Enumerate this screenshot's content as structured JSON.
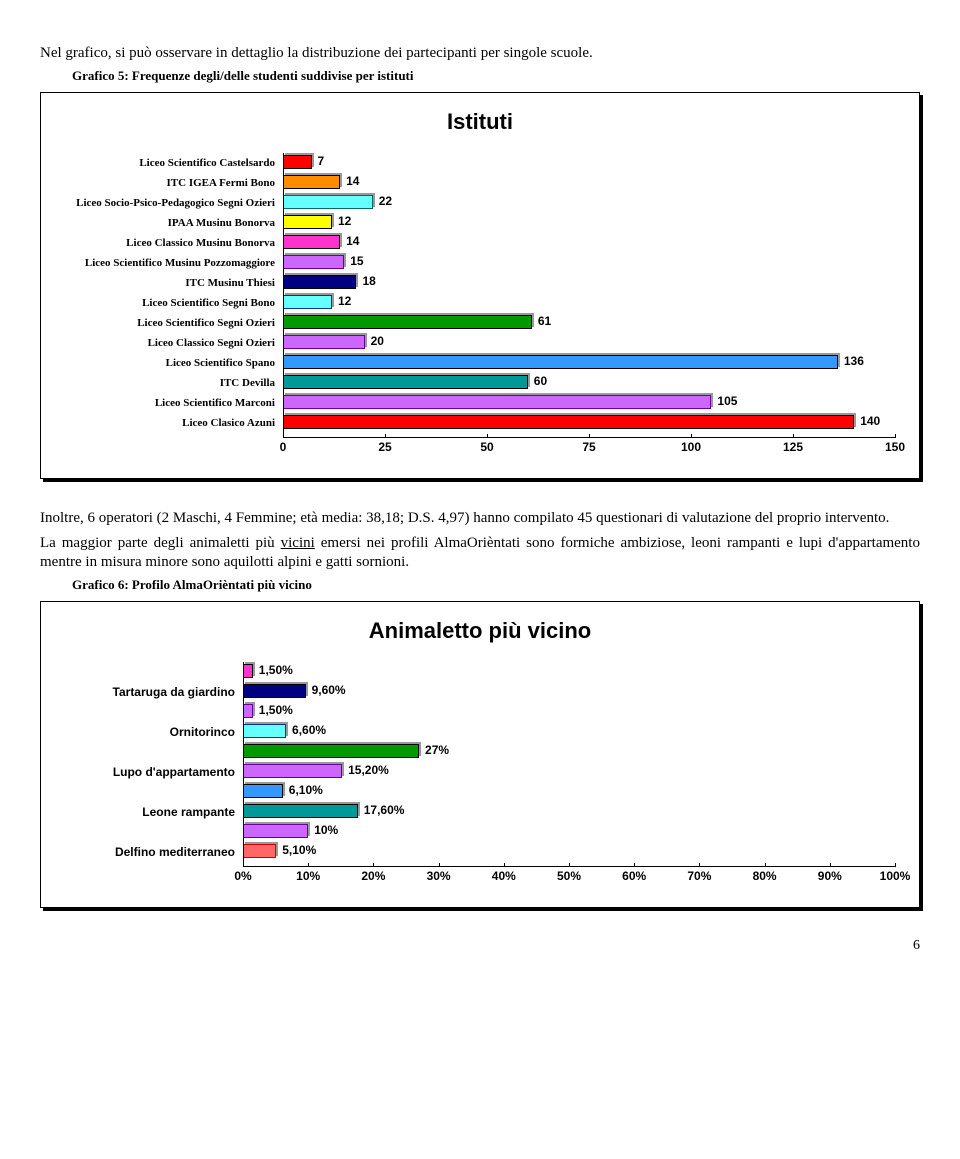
{
  "intro_text": "Nel grafico, si può osservare in dettaglio la distribuzione dei partecipanti per singole scuole.",
  "caption1": "Grafico 5: Frequenze degli/delle studenti suddivise per istituti",
  "chart1": {
    "title": "Istituti",
    "xmax": 150,
    "ticks": [
      0,
      25,
      50,
      75,
      100,
      125,
      150
    ],
    "rows": [
      {
        "label": "Liceo Scientifico Castelsardo",
        "value": 7,
        "color": "#ff0000"
      },
      {
        "label": "ITC IGEA Fermi Bono",
        "value": 14,
        "color": "#ff8c00"
      },
      {
        "label": "Liceo Socio-Psico-Pedagogico Segni Ozieri",
        "value": 22,
        "color": "#66ffff",
        "border": "#006666"
      },
      {
        "label": "IPAA Musinu Bonorva",
        "value": 12,
        "color": "#ffff00"
      },
      {
        "label": "Liceo Classico Musinu Bonorva",
        "value": 14,
        "color": "#ff33cc"
      },
      {
        "label": "Liceo Scientifico Musinu Pozzomaggiore",
        "value": 15,
        "color": "#cc66ff",
        "border": "#660099"
      },
      {
        "label": "ITC Musinu Thiesi",
        "value": 18,
        "color": "#000080"
      },
      {
        "label": "Liceo Scientifico Segni Bono",
        "value": 12,
        "color": "#66ffff",
        "border": "#003399"
      },
      {
        "label": "Liceo Scientifico Segni Ozieri",
        "value": 61,
        "color": "#009900"
      },
      {
        "label": "Liceo Classico Segni Ozieri",
        "value": 20,
        "color": "#cc66ff",
        "border": "#660099"
      },
      {
        "label": "Liceo Scientifico Spano",
        "value": 136,
        "color": "#3399ff"
      },
      {
        "label": "ITC Devilla",
        "value": 60,
        "color": "#009999"
      },
      {
        "label": "Liceo Scientifico Marconi",
        "value": 105,
        "color": "#cc66ff",
        "border": "#660099"
      },
      {
        "label": "Liceo Clasico Azuni",
        "value": 140,
        "color": "#ff0000"
      }
    ]
  },
  "body_p1_a": "Inoltre, 6 operatori (2 Maschi, 4 Femmine; età media: 38,18; D.S. 4,97) hanno compilato 45 questionari di valutazione del proprio intervento.",
  "body_p2_a": "La maggior parte degli animaletti più ",
  "body_p2_u": "vicini",
  "body_p2_b": " emersi nei profili AlmaOrièntati sono formiche ambiziose, leoni rampanti e lupi d'appartamento mentre in misura minore sono aquilotti alpini e gatti sornioni.",
  "caption2": "Grafico 6: Profilo AlmaOrièntati più vicino",
  "chart2": {
    "title": "Animaletto più vicino",
    "xmax": 100,
    "ticks_pct": [
      0,
      10,
      20,
      30,
      40,
      50,
      60,
      70,
      80,
      90,
      100
    ],
    "visible_labels": [
      "Tartaruga da giardino",
      "Ornitorinco",
      "Lupo d'appartamento",
      "Leone rampante",
      "Delfino mediterraneo"
    ],
    "rows": [
      {
        "label": "",
        "value": 1.5,
        "value_text": "1,50%",
        "color": "#ff33cc"
      },
      {
        "label": "Tartaruga da giardino",
        "value": 9.6,
        "value_text": "9,60%",
        "color": "#000080"
      },
      {
        "label": "",
        "value": 1.5,
        "value_text": "1,50%",
        "color": "#cc66ff",
        "border": "#660099"
      },
      {
        "label": "Ornitorinco",
        "value": 6.6,
        "value_text": "6,60%",
        "color": "#66ffff",
        "border": "#003399"
      },
      {
        "label": "",
        "value": 27,
        "value_text": "27%",
        "color": "#009900"
      },
      {
        "label": "Lupo d'appartamento",
        "value": 15.2,
        "value_text": "15,20%",
        "color": "#cc66ff",
        "border": "#660099"
      },
      {
        "label": "",
        "value": 6.1,
        "value_text": "6,10%",
        "color": "#3399ff"
      },
      {
        "label": "Leone rampante",
        "value": 17.6,
        "value_text": "17,60%",
        "color": "#009999"
      },
      {
        "label": "",
        "value": 10,
        "value_text": "10%",
        "color": "#cc66ff",
        "border": "#660099"
      },
      {
        "label": "Delfino mediterraneo",
        "value": 5.1,
        "value_text": "5,10%",
        "color": "#ff6666",
        "border": "#cc0000"
      }
    ]
  },
  "page_number": "6"
}
